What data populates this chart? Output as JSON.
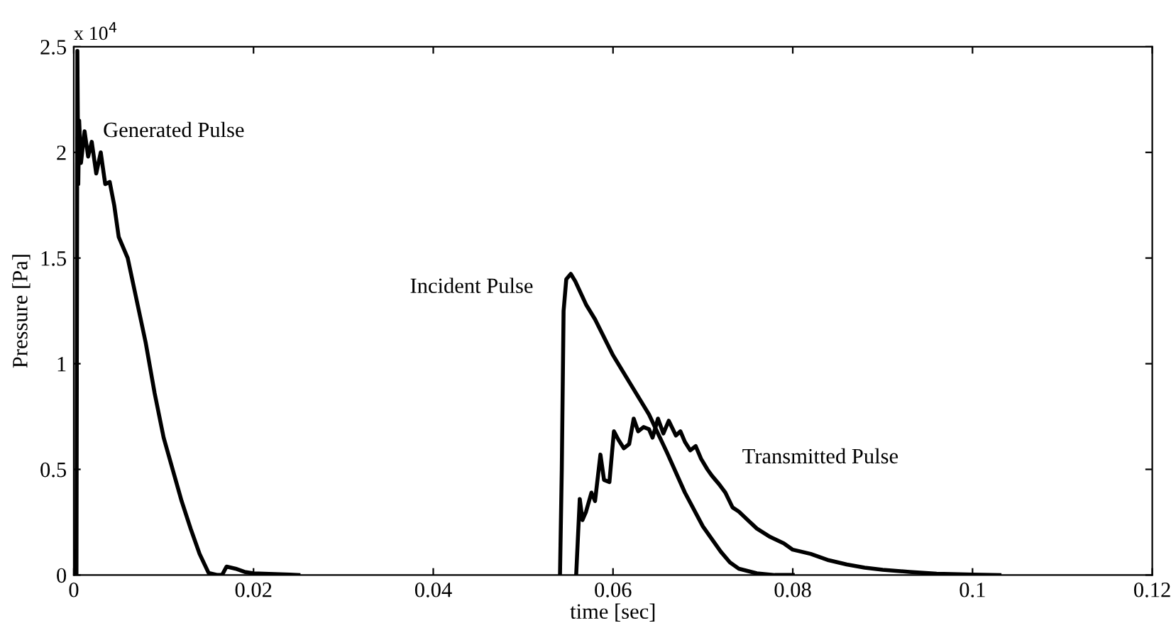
{
  "chart_data": {
    "type": "line",
    "xlabel": "time [sec]",
    "ylabel": "Pressure [Pa]",
    "xlim": [
      0,
      0.12
    ],
    "ylim": [
      0,
      2.5
    ],
    "xticks": [
      0,
      0.02,
      0.04,
      0.06,
      0.08,
      0.1,
      0.12
    ],
    "yticks": [
      0,
      0.5,
      1,
      1.5,
      2,
      2.5
    ],
    "grid": false,
    "legend": false,
    "marker": "none",
    "line_style": "solid",
    "series": [
      {
        "name": "Generated Pulse",
        "color": "#000000",
        "x": [
          0,
          0.0002,
          0.0003,
          0.0004,
          0.0005,
          0.0006,
          0.0008,
          0.0012,
          0.0016,
          0.002,
          0.0025,
          0.003,
          0.0035,
          0.004,
          0.0045,
          0.005,
          0.006,
          0.007,
          0.008,
          0.009,
          0.01,
          0.011,
          0.012,
          0.013,
          0.014,
          0.015,
          0.016,
          0.0165,
          0.017,
          0.018,
          0.019,
          0.02,
          0.024,
          0.025
        ],
        "values": [
          0,
          0.08,
          0,
          2.48,
          1.85,
          2.15,
          1.95,
          2.1,
          1.98,
          2.05,
          1.9,
          2.0,
          1.85,
          1.86,
          1.75,
          1.6,
          1.5,
          1.3,
          1.1,
          0.86,
          0.65,
          0.5,
          0.35,
          0.22,
          0.1,
          0.01,
          0,
          0,
          0.04,
          0.03,
          0.015,
          0.008,
          0.002,
          0
        ]
      },
      {
        "name": "Incident Pulse",
        "color": "#000000",
        "x": [
          0.0541,
          0.0543,
          0.0545,
          0.0548,
          0.0553,
          0.0558,
          0.057,
          0.058,
          0.06,
          0.062,
          0.064,
          0.066,
          0.068,
          0.07,
          0.072,
          0.073,
          0.074,
          0.076,
          0.078,
          0.08
        ],
        "values": [
          0,
          0.5,
          1.25,
          1.4,
          1.425,
          1.39,
          1.28,
          1.21,
          1.04,
          0.9,
          0.76,
          0.58,
          0.39,
          0.23,
          0.11,
          0.06,
          0.03,
          0.008,
          0,
          0
        ]
      },
      {
        "name": "Transmitted Pulse",
        "color": "#000000",
        "x": [
          0.0559,
          0.0563,
          0.0566,
          0.057,
          0.0576,
          0.058,
          0.0586,
          0.059,
          0.0596,
          0.0601,
          0.0606,
          0.0612,
          0.0618,
          0.0623,
          0.0628,
          0.0634,
          0.064,
          0.0644,
          0.065,
          0.0656,
          0.0662,
          0.067,
          0.0675,
          0.068,
          0.0686,
          0.0692,
          0.0698,
          0.0705,
          0.071,
          0.0718,
          0.0725,
          0.0733,
          0.074,
          0.075,
          0.076,
          0.0775,
          0.079,
          0.08,
          0.082,
          0.084,
          0.086,
          0.088,
          0.09,
          0.093,
          0.096,
          0.1,
          0.103
        ],
        "values": [
          0,
          0.36,
          0.26,
          0.3,
          0.39,
          0.35,
          0.57,
          0.45,
          0.44,
          0.68,
          0.64,
          0.6,
          0.62,
          0.74,
          0.68,
          0.7,
          0.69,
          0.65,
          0.74,
          0.67,
          0.73,
          0.66,
          0.68,
          0.63,
          0.59,
          0.61,
          0.55,
          0.5,
          0.47,
          0.43,
          0.39,
          0.32,
          0.3,
          0.26,
          0.22,
          0.18,
          0.15,
          0.12,
          0.1,
          0.07,
          0.05,
          0.035,
          0.025,
          0.015,
          0.006,
          0.002,
          0
        ]
      }
    ],
    "annotations": [
      "x 10$^{4}$"
    ]
  }
}
